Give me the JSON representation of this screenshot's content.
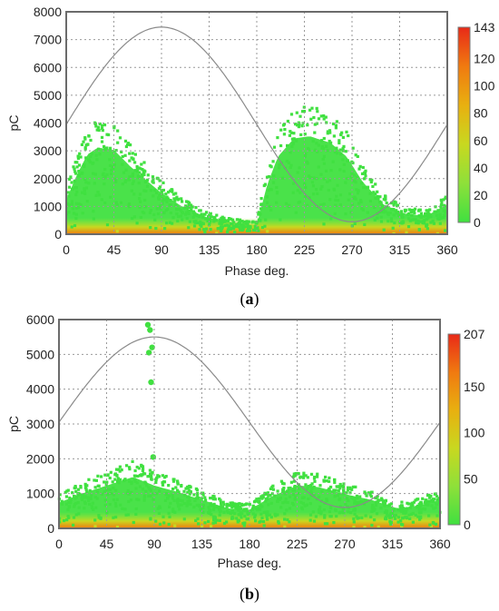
{
  "colors": {
    "plot_border": "#6b6b6b",
    "grid": "#9a9a9a",
    "sine": "#8a8a8a",
    "colorscale": [
      "#40e040",
      "#8ee03a",
      "#c8d820",
      "#e8b010",
      "#f07a10",
      "#e82a18"
    ]
  },
  "chart_data": [
    {
      "type": "scatter",
      "caption": "(a)",
      "caption_letter": "a",
      "xlabel": "Phase deg.",
      "ylabel": "pC",
      "xlim": [
        0,
        360
      ],
      "ylim": [
        0,
        8000
      ],
      "xticks": [
        0,
        45,
        90,
        135,
        180,
        225,
        270,
        315,
        360
      ],
      "yticks": [
        0,
        1000,
        2000,
        3000,
        4000,
        5000,
        6000,
        7000,
        8000
      ],
      "colorbar": {
        "min": 0,
        "max": 143,
        "ticks": [
          0,
          20,
          40,
          60,
          80,
          100,
          120,
          143
        ]
      },
      "reference_sine": {
        "amplitude_pC": 3500,
        "offset_pC": 3950,
        "peak_phase_deg": 90
      },
      "density_envelope": [
        {
          "phase": 0,
          "pC": 1500
        },
        {
          "phase": 10,
          "pC": 2600
        },
        {
          "phase": 20,
          "pC": 3500
        },
        {
          "phase": 30,
          "pC": 3800
        },
        {
          "phase": 45,
          "pC": 3700
        },
        {
          "phase": 60,
          "pC": 3000
        },
        {
          "phase": 75,
          "pC": 2400
        },
        {
          "phase": 90,
          "pC": 1800
        },
        {
          "phase": 110,
          "pC": 1200
        },
        {
          "phase": 135,
          "pC": 700
        },
        {
          "phase": 160,
          "pC": 500
        },
        {
          "phase": 180,
          "pC": 400
        },
        {
          "phase": 190,
          "pC": 2200
        },
        {
          "phase": 200,
          "pC": 3400
        },
        {
          "phase": 215,
          "pC": 4200
        },
        {
          "phase": 230,
          "pC": 4300
        },
        {
          "phase": 250,
          "pC": 4000
        },
        {
          "phase": 265,
          "pC": 3400
        },
        {
          "phase": 280,
          "pC": 2300
        },
        {
          "phase": 300,
          "pC": 1300
        },
        {
          "phase": 320,
          "pC": 900
        },
        {
          "phase": 340,
          "pC": 800
        },
        {
          "phase": 360,
          "pC": 1300
        }
      ]
    },
    {
      "type": "scatter",
      "caption": "(b)",
      "caption_letter": "b",
      "xlabel": "Phase deg.",
      "ylabel": "pC",
      "xlim": [
        0,
        360
      ],
      "ylim": [
        0,
        6000
      ],
      "xticks": [
        0,
        45,
        90,
        135,
        180,
        225,
        270,
        315,
        360
      ],
      "yticks": [
        0,
        1000,
        2000,
        3000,
        4000,
        5000,
        6000
      ],
      "colorbar": {
        "min": 0,
        "max": 207,
        "ticks": [
          0,
          50,
          100,
          150,
          207
        ]
      },
      "reference_sine": {
        "amplitude_pC": 2450,
        "offset_pC": 3050,
        "peak_phase_deg": 90
      },
      "density_envelope": [
        {
          "phase": 0,
          "pC": 900
        },
        {
          "phase": 20,
          "pC": 1200
        },
        {
          "phase": 45,
          "pC": 1500
        },
        {
          "phase": 70,
          "pC": 1800
        },
        {
          "phase": 90,
          "pC": 1500
        },
        {
          "phase": 110,
          "pC": 1300
        },
        {
          "phase": 135,
          "pC": 1000
        },
        {
          "phase": 160,
          "pC": 700
        },
        {
          "phase": 180,
          "pC": 650
        },
        {
          "phase": 200,
          "pC": 1100
        },
        {
          "phase": 225,
          "pC": 1500
        },
        {
          "phase": 245,
          "pC": 1450
        },
        {
          "phase": 270,
          "pC": 1200
        },
        {
          "phase": 295,
          "pC": 1000
        },
        {
          "phase": 320,
          "pC": 700
        },
        {
          "phase": 340,
          "pC": 800
        },
        {
          "phase": 360,
          "pC": 1000
        }
      ],
      "isolated_points": [
        {
          "phase": 84,
          "pC": 5850
        },
        {
          "phase": 86,
          "pC": 5700
        },
        {
          "phase": 88,
          "pC": 5200
        },
        {
          "phase": 85,
          "pC": 5050
        },
        {
          "phase": 87,
          "pC": 4200
        },
        {
          "phase": 89,
          "pC": 2050
        }
      ]
    }
  ]
}
